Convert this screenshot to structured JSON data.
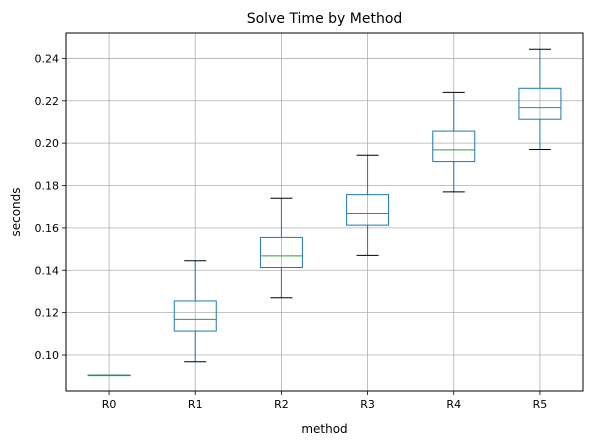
{
  "chart_data": {
    "type": "box",
    "title": "Solve Time by Method",
    "xlabel": "method",
    "ylabel": "seconds",
    "categories": [
      "R0",
      "R1",
      "R2",
      "R3",
      "R4",
      "R5"
    ],
    "boxes": [
      {
        "name": "R0",
        "whislo": 0.0905,
        "q1": 0.0905,
        "med": 0.0905,
        "q3": 0.0905,
        "whishi": 0.0905
      },
      {
        "name": "R1",
        "whislo": 0.0968,
        "q1": 0.1113,
        "med": 0.1168,
        "q3": 0.1255,
        "whishi": 0.1445
      },
      {
        "name": "R2",
        "whislo": 0.127,
        "q1": 0.1413,
        "med": 0.1468,
        "q3": 0.1555,
        "whishi": 0.174
      },
      {
        "name": "R3",
        "whislo": 0.147,
        "q1": 0.1613,
        "med": 0.1668,
        "q3": 0.1757,
        "whishi": 0.1943
      },
      {
        "name": "R4",
        "whislo": 0.177,
        "q1": 0.1913,
        "med": 0.1968,
        "q3": 0.2057,
        "whishi": 0.224
      },
      {
        "name": "R5",
        "whislo": 0.197,
        "q1": 0.2113,
        "med": 0.2168,
        "q3": 0.2259,
        "whishi": 0.2443
      }
    ],
    "ylim": [
      0.083,
      0.252
    ],
    "yticks": [
      0.1,
      0.12,
      0.14,
      0.16,
      0.18,
      0.2,
      0.22,
      0.24
    ],
    "ytick_labels": [
      "0.10",
      "0.12",
      "0.14",
      "0.16",
      "0.18",
      "0.20",
      "0.22",
      "0.24"
    ],
    "grid": true,
    "colors": {
      "box": "#1f77b4",
      "median": "#2ca02c",
      "whisker": "#1f77b4",
      "cap": "#000000",
      "grid": "#b0b0b0"
    }
  }
}
